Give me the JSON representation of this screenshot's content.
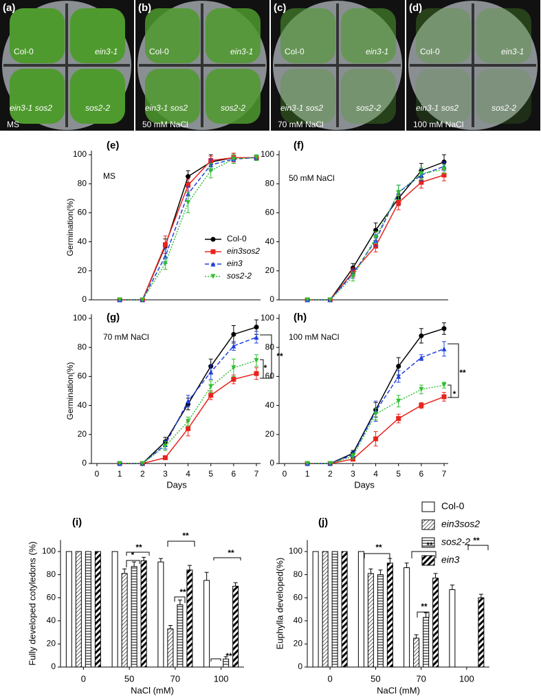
{
  "photos": [
    {
      "label": "(a)",
      "treatment": "MS",
      "genotypes": [
        "Col-0",
        "ein3-1",
        "ein3-1 sos2",
        "sos2-2"
      ]
    },
    {
      "label": "(b)",
      "treatment": "50 mM NaCl",
      "genotypes": [
        "Col-0",
        "ein3-1",
        "ein3-1 sos2",
        "sos2-2"
      ]
    },
    {
      "label": "(c)",
      "treatment": "70 mM NaCl",
      "genotypes": [
        "Col-0",
        "ein3-1",
        "ein3-1 sos2",
        "sos2-2"
      ]
    },
    {
      "label": "(d)",
      "treatment": "100 mM NaCl",
      "genotypes": [
        "Col-0",
        "ein3-1",
        "ein3-1 sos2",
        "sos2-2"
      ]
    }
  ],
  "chart_data": [
    {
      "type": "line",
      "label": "(e)",
      "subtitle": "MS",
      "y_label": "Germination(%)",
      "ylim": [
        0,
        100
      ],
      "yticks": [
        0,
        20,
        40,
        60,
        80,
        100
      ],
      "x": [
        1,
        2,
        3,
        4,
        5,
        6,
        7
      ],
      "series": [
        {
          "name": "Col-0",
          "color": "#000000",
          "linestyle": "solid",
          "marker": "circle",
          "values": [
            0,
            0,
            37,
            85,
            95,
            98,
            98
          ],
          "errors": [
            0,
            0,
            5,
            4,
            5,
            3,
            2
          ]
        },
        {
          "name": "ein3sos2",
          "color": "#e8231c",
          "linestyle": "solid",
          "marker": "square",
          "values": [
            0,
            0,
            38,
            79,
            96,
            98,
            98
          ],
          "errors": [
            0,
            0,
            6,
            4,
            3,
            3,
            2
          ]
        },
        {
          "name": "ein3",
          "color": "#1f3fe0",
          "linestyle": "dashed",
          "marker": "triangle",
          "values": [
            0,
            0,
            30,
            73,
            93,
            97,
            98
          ],
          "errors": [
            0,
            0,
            5,
            5,
            4,
            3,
            2
          ]
        },
        {
          "name": "sos2-2",
          "color": "#2fbf2f",
          "linestyle": "dotted",
          "marker": "triangle-down",
          "values": [
            0,
            0,
            25,
            67,
            89,
            97,
            98
          ],
          "errors": [
            0,
            0,
            4,
            7,
            5,
            3,
            2
          ]
        }
      ]
    },
    {
      "type": "line",
      "label": "(f)",
      "subtitle": "50 mM NaCl",
      "ylim": [
        0,
        100
      ],
      "yticks": [
        0,
        20,
        40,
        60,
        80,
        100
      ],
      "x": [
        1,
        2,
        3,
        4,
        5,
        6,
        7
      ],
      "series": [
        {
          "values": [
            0,
            0,
            22,
            48,
            70,
            89,
            95
          ],
          "errors": [
            0,
            0,
            3,
            5,
            5,
            5,
            5
          ]
        },
        {
          "values": [
            0,
            0,
            19,
            37,
            67,
            81,
            86
          ],
          "errors": [
            0,
            0,
            3,
            4,
            5,
            4,
            4
          ]
        },
        {
          "values": [
            0,
            0,
            18,
            41,
            74,
            86,
            92
          ],
          "errors": [
            0,
            0,
            3,
            4,
            5,
            4,
            3
          ]
        },
        {
          "values": [
            0,
            0,
            16,
            43,
            74,
            87,
            90
          ],
          "errors": [
            0,
            0,
            3,
            4,
            5,
            4,
            3
          ]
        }
      ]
    },
    {
      "type": "line",
      "label": "(g)",
      "subtitle": "70 mM NaCl",
      "y_label": "Germination(%)",
      "x_label": "Days",
      "ylim": [
        0,
        100
      ],
      "yticks": [
        0,
        20,
        40,
        60,
        80,
        100
      ],
      "xlim": [
        0,
        7
      ],
      "xticks": [
        0,
        1,
        2,
        3,
        4,
        5,
        6,
        7
      ],
      "x": [
        1,
        2,
        3,
        4,
        5,
        6,
        7
      ],
      "annotations": [
        "**",
        "*"
      ],
      "series": [
        {
          "values": [
            0,
            0,
            15,
            41,
            67,
            89,
            94
          ],
          "errors": [
            0,
            0,
            3,
            4,
            5,
            6,
            5
          ]
        },
        {
          "values": [
            0,
            0,
            4,
            24,
            47,
            58,
            62
          ],
          "errors": [
            0,
            0,
            1,
            5,
            3,
            3,
            4
          ]
        },
        {
          "values": [
            0,
            0,
            13,
            43,
            63,
            81,
            87
          ],
          "errors": [
            0,
            0,
            3,
            4,
            5,
            3,
            4
          ]
        },
        {
          "values": [
            0,
            0,
            12,
            29,
            53,
            66,
            71
          ],
          "errors": [
            0,
            0,
            3,
            3,
            4,
            6,
            4
          ]
        }
      ]
    },
    {
      "type": "line",
      "label": "(h)",
      "subtitle": "100 mM NaCl",
      "x_label": "Days",
      "ylim": [
        0,
        100
      ],
      "yticks": [
        0,
        20,
        40,
        60,
        80,
        100
      ],
      "xlim": [
        0,
        7
      ],
      "xticks": [
        0,
        1,
        2,
        3,
        4,
        5,
        6,
        7
      ],
      "x": [
        1,
        2,
        3,
        4,
        5,
        6,
        7
      ],
      "annotations": [
        "**",
        "*"
      ],
      "series": [
        {
          "values": [
            0,
            0,
            7,
            37,
            67,
            88,
            93
          ],
          "errors": [
            0,
            0,
            2,
            5,
            6,
            5,
            4
          ]
        },
        {
          "values": [
            0,
            0,
            3,
            17,
            31,
            40,
            46
          ],
          "errors": [
            0,
            0,
            1,
            5,
            3,
            2,
            3
          ]
        },
        {
          "values": [
            0,
            0,
            6,
            36,
            60,
            73,
            79
          ],
          "errors": [
            0,
            0,
            2,
            7,
            4,
            2,
            5
          ]
        },
        {
          "values": [
            0,
            0,
            5,
            34,
            43,
            51,
            54
          ],
          "errors": [
            0,
            0,
            2,
            4,
            4,
            3,
            2
          ]
        }
      ]
    },
    {
      "type": "bar",
      "label": "(i)",
      "y_label": "Fully developed  cotyledons (%)",
      "x_label": "NaCl (mM)",
      "ylim": [
        0,
        110
      ],
      "yticks": [
        0,
        20,
        40,
        60,
        80,
        100
      ],
      "categories": [
        "0",
        "50",
        "70",
        "100"
      ],
      "annotations": [
        "*",
        "**",
        "**",
        "**",
        "**",
        "**"
      ],
      "series": [
        {
          "name": "Col-0",
          "pattern": "none",
          "values": [
            100,
            100,
            91,
            75
          ],
          "errors": [
            0,
            0,
            3,
            7
          ]
        },
        {
          "name": "ein3sos2",
          "pattern": "hatch",
          "values": [
            100,
            81,
            33,
            0
          ],
          "errors": [
            0,
            4,
            3,
            0
          ]
        },
        {
          "name": "sos2-2",
          "pattern": "horizontal",
          "values": [
            100,
            87,
            54,
            7
          ],
          "errors": [
            0,
            4,
            4,
            2
          ]
        },
        {
          "name": "ein3",
          "pattern": "thick-hatch",
          "values": [
            100,
            92,
            84,
            70
          ],
          "errors": [
            0,
            3,
            4,
            3
          ]
        }
      ]
    },
    {
      "type": "bar",
      "label": "(j)",
      "y_label": "Euphylla developed(%)",
      "x_label": "NaCl (mM)",
      "ylim": [
        0,
        110
      ],
      "yticks": [
        0,
        20,
        40,
        60,
        80,
        100
      ],
      "categories": [
        "0",
        "50",
        "70",
        "100"
      ],
      "annotations": [
        "**",
        "**",
        "**",
        "**"
      ],
      "series": [
        {
          "values": [
            100,
            100,
            86,
            67
          ],
          "errors": [
            0,
            0,
            4,
            4
          ]
        },
        {
          "values": [
            100,
            81,
            25,
            0
          ],
          "errors": [
            0,
            4,
            3,
            0
          ]
        },
        {
          "values": [
            100,
            80,
            43,
            0
          ],
          "errors": [
            0,
            4,
            4,
            0
          ]
        },
        {
          "values": [
            100,
            90,
            77,
            60
          ],
          "errors": [
            0,
            4,
            4,
            3
          ]
        }
      ]
    }
  ]
}
